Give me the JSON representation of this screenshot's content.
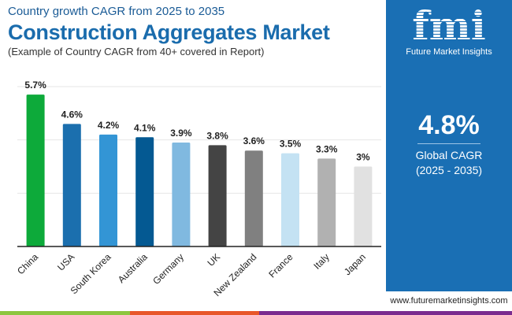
{
  "header": {
    "subtitle": "Country growth CAGR from 2025 to 2035",
    "title": "Construction Aggregates Market",
    "note": "(Example of Country CAGR from 40+ covered in Report)"
  },
  "side": {
    "logo_text": "fmi",
    "brand": "Future Market Insights",
    "value": "4.8%",
    "label": "Global CAGR",
    "period": "(2025 - 2035)"
  },
  "footer": {
    "url": "www.futuremarketinsights.com"
  },
  "colors": {
    "brand_blue": "#1a6fb4",
    "strip": [
      "#8dc63f",
      "#e8572a",
      "#7b2b8f"
    ]
  },
  "chart_data": {
    "type": "bar",
    "categories": [
      "China",
      "USA",
      "South Korea",
      "Australia",
      "Germany",
      "UK",
      "New Zealand",
      "France",
      "Italy",
      "Japan"
    ],
    "values": [
      5.7,
      4.6,
      4.2,
      4.1,
      3.9,
      3.8,
      3.6,
      3.5,
      3.3,
      3.0
    ],
    "data_labels": [
      "5.7%",
      "4.6%",
      "4.2%",
      "4.1%",
      "3.9%",
      "3.8%",
      "3.6%",
      "3.5%",
      "3.3%",
      "3%"
    ],
    "colors": [
      "#0daa3a",
      "#1b6fae",
      "#3395d5",
      "#045992",
      "#80b9e0",
      "#444444",
      "#808080",
      "#c4e2f3",
      "#b1b1b1",
      "#e1e1e1"
    ],
    "ylim": [
      0,
      6
    ],
    "grid": true,
    "gridlines": [
      2,
      4,
      6
    ],
    "unit": "%"
  }
}
